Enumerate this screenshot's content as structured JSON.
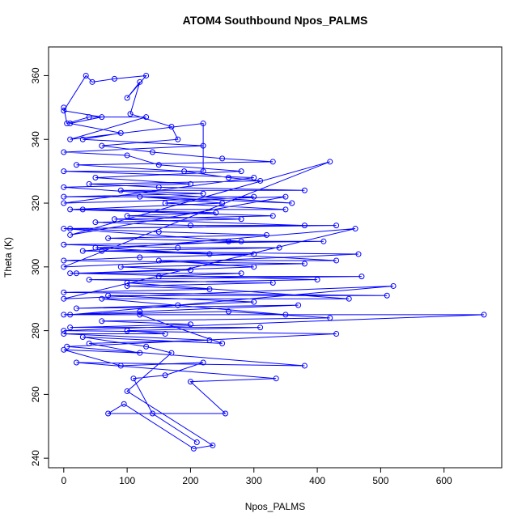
{
  "chart_data": {
    "type": "line",
    "title": "ATOM4 Southbound Npos_PALMS",
    "x_label": "Npos_PALMS",
    "y_label": "Theta (K)",
    "color": "#0000ff",
    "markers": true,
    "xlim": [
      -24,
      691
    ],
    "ylim": [
      237,
      369
    ],
    "xticks": [
      0,
      100,
      200,
      300,
      400,
      500,
      600
    ],
    "yticks": [
      240,
      260,
      280,
      300,
      320,
      340,
      360
    ],
    "x": [
      0,
      5,
      40,
      130,
      10,
      220,
      220,
      0,
      300,
      0,
      350,
      10,
      420,
      0,
      465,
      30,
      460,
      0,
      520,
      10,
      663,
      0,
      430,
      5,
      380,
      20,
      335,
      200,
      255,
      70,
      95,
      205,
      235,
      100,
      170,
      130,
      30,
      250,
      120,
      350,
      60,
      450,
      100,
      400,
      20,
      300,
      150,
      430,
      50,
      280,
      0,
      380,
      80,
      330,
      10,
      250,
      120,
      360,
      0,
      200,
      50,
      280,
      150,
      100,
      0,
      220,
      30,
      90,
      10,
      60,
      0,
      35,
      45,
      80,
      130,
      100,
      120,
      105,
      170,
      180,
      60,
      140,
      250,
      330,
      20,
      190,
      260,
      310,
      40,
      150,
      380,
      90,
      220,
      0,
      300,
      160,
      350,
      30,
      240,
      100,
      280,
      50,
      200,
      430,
      10,
      150,
      320,
      70,
      260,
      410,
      0,
      180,
      340,
      60,
      230,
      300,
      120,
      0,
      380,
      90,
      200,
      10,
      280,
      150,
      470,
      40,
      330,
      100,
      230,
      0,
      510,
      70,
      300,
      180,
      20,
      370,
      120,
      0,
      260,
      420,
      60,
      200,
      10,
      310,
      100,
      160,
      0,
      230,
      40,
      120,
      0,
      90,
      220,
      160,
      110,
      140,
      210
    ],
    "values": [
      350,
      345,
      347,
      347,
      340,
      345,
      330,
      330,
      328,
      320,
      322,
      310,
      333,
      300,
      304,
      305,
      312,
      290,
      294,
      285,
      285,
      280,
      279,
      275,
      269,
      270,
      265,
      264,
      254,
      254,
      257,
      243,
      244,
      261,
      273,
      275,
      278,
      276,
      285,
      285,
      290,
      290,
      295,
      296,
      298,
      300,
      302,
      302,
      306,
      308,
      312,
      313,
      315,
      316,
      318,
      320,
      322,
      320,
      325,
      326,
      328,
      330,
      332,
      335,
      336,
      338,
      340,
      342,
      345,
      347,
      349,
      360,
      358,
      359,
      360,
      353,
      358,
      348,
      344,
      340,
      338,
      336,
      334,
      333,
      332,
      330,
      328,
      327,
      326,
      325,
      324,
      324,
      323,
      322,
      322,
      320,
      318,
      318,
      317,
      316,
      315,
      314,
      313,
      313,
      312,
      311,
      310,
      309,
      308,
      308,
      307,
      306,
      306,
      305,
      304,
      304,
      303,
      302,
      301,
      300,
      299,
      298,
      298,
      297,
      297,
      296,
      295,
      294,
      293,
      292,
      291,
      291,
      289,
      288,
      287,
      288,
      286,
      285,
      286,
      284,
      283,
      282,
      281,
      281,
      280,
      279,
      279,
      277,
      276,
      273,
      274,
      269,
      270,
      266,
      265,
      254,
      245
    ]
  }
}
